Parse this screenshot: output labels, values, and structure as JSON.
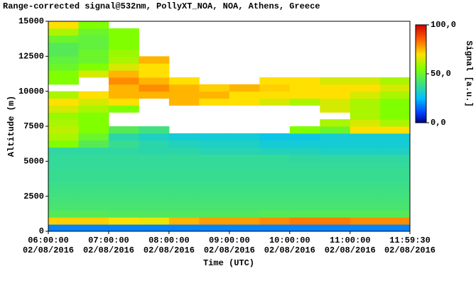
{
  "chart_data": {
    "type": "heatmap",
    "title": "Range-corrected signal@532nm, PollyXT_NOA, NOA, Athens, Greece",
    "x_label": "Time (UTC)",
    "y_label": "Altitude (m)",
    "colorbar_label": "Signal [a.u.]",
    "x_edges": [
      6,
      6.5,
      7,
      7.5,
      8,
      8.5,
      9,
      9.5,
      10,
      10.5,
      11,
      11.5,
      11.9917
    ],
    "y_edges": [
      0,
      500,
      1000,
      1500,
      2000,
      2500,
      3000,
      3500,
      4000,
      4500,
      5000,
      5500,
      6000,
      6500,
      7000,
      7500,
      8000,
      8500,
      9000,
      9500,
      10000,
      10500,
      11000,
      11500,
      12000,
      12500,
      13000,
      13500,
      14000,
      14500,
      15000
    ],
    "z": [
      [
        18,
        18,
        18,
        18,
        18,
        18,
        18,
        18,
        18,
        18,
        18,
        18
      ],
      [
        72,
        72,
        70,
        68,
        75,
        78,
        78,
        80,
        82,
        82,
        80,
        80
      ],
      [
        45,
        45,
        44,
        44,
        44,
        44,
        44,
        45,
        45,
        45,
        45,
        45
      ],
      [
        42,
        42,
        42,
        42,
        42,
        42,
        42,
        42,
        42,
        42,
        42,
        42
      ],
      [
        41,
        41,
        41,
        41,
        41,
        41,
        41,
        41,
        41,
        41,
        41,
        41
      ],
      [
        40,
        40,
        40,
        40,
        40,
        40,
        40,
        40,
        40,
        40,
        40,
        40
      ],
      [
        39,
        39,
        39,
        39,
        39,
        39,
        39,
        39,
        39,
        39,
        39,
        39
      ],
      [
        38,
        38,
        38,
        38,
        38,
        38,
        38,
        38,
        38,
        38,
        38,
        38
      ],
      [
        38,
        38,
        38,
        38,
        38,
        38,
        38,
        38,
        38,
        38,
        38,
        38
      ],
      [
        37,
        37,
        37,
        37,
        37,
        37,
        37,
        37,
        37,
        37,
        37,
        37
      ],
      [
        37,
        37,
        37,
        37,
        37,
        37,
        37,
        37,
        36,
        36,
        36,
        36
      ],
      [
        36,
        36,
        36,
        35,
        35,
        34,
        34,
        33,
        33,
        32,
        32,
        32
      ],
      [
        55,
        45,
        38,
        35,
        33,
        32,
        32,
        30,
        30,
        30,
        30,
        30
      ],
      [
        60,
        50,
        35,
        32,
        30,
        30,
        30,
        28,
        28,
        30,
        30,
        30
      ],
      [
        62,
        55,
        45,
        40,
        null,
        null,
        null,
        null,
        55,
        50,
        70,
        70
      ],
      [
        60,
        55,
        null,
        null,
        null,
        null,
        null,
        null,
        null,
        60,
        65,
        60
      ],
      [
        58,
        55,
        null,
        null,
        null,
        null,
        null,
        null,
        null,
        null,
        60,
        55
      ],
      [
        65,
        60,
        55,
        null,
        null,
        null,
        null,
        null,
        null,
        65,
        60,
        55
      ],
      [
        70,
        65,
        70,
        null,
        75,
        70,
        70,
        65,
        60,
        65,
        60,
        55
      ],
      [
        60,
        70,
        75,
        75,
        75,
        75,
        70,
        70,
        70,
        70,
        65,
        60
      ],
      [
        null,
        null,
        75,
        80,
        75,
        72,
        75,
        72,
        70,
        70,
        70,
        65
      ],
      [
        55,
        null,
        80,
        75,
        70,
        null,
        null,
        70,
        70,
        65,
        65,
        60
      ],
      [
        55,
        65,
        75,
        70,
        null,
        null,
        null,
        null,
        null,
        null,
        null,
        null
      ],
      [
        50,
        55,
        65,
        70,
        null,
        null,
        null,
        null,
        null,
        null,
        null,
        null
      ],
      [
        48,
        50,
        60,
        75,
        null,
        null,
        null,
        null,
        null,
        null,
        null,
        null
      ],
      [
        45,
        50,
        58,
        null,
        null,
        null,
        null,
        null,
        null,
        null,
        null,
        null
      ],
      [
        45,
        48,
        55,
        null,
        null,
        null,
        null,
        null,
        null,
        null,
        null,
        null
      ],
      [
        50,
        48,
        55,
        null,
        null,
        null,
        null,
        null,
        null,
        null,
        null,
        null
      ],
      [
        60,
        50,
        55,
        null,
        null,
        null,
        null,
        null,
        null,
        null,
        null,
        null
      ],
      [
        70,
        55,
        null,
        null,
        null,
        null,
        null,
        null,
        null,
        null,
        null,
        null
      ]
    ],
    "xlim": [
      6,
      11.9917
    ],
    "xticks": [
      {
        "value": 6,
        "label": [
          "06:00:00",
          "02/08/2016"
        ]
      },
      {
        "value": 7,
        "label": [
          "07:00:00",
          "02/08/2016"
        ]
      },
      {
        "value": 8,
        "label": [
          "08:00:00",
          "02/08/2016"
        ]
      },
      {
        "value": 9,
        "label": [
          "09:00:00",
          "02/08/2016"
        ]
      },
      {
        "value": 10,
        "label": [
          "10:00:00",
          "02/08/2016"
        ]
      },
      {
        "value": 11,
        "label": [
          "11:00:00",
          "02/08/2016"
        ]
      },
      {
        "value": 11.9917,
        "label": [
          "11:59:30",
          "02/08/2016"
        ]
      }
    ],
    "ylim": [
      0,
      15000
    ],
    "yticks": [
      0,
      2500,
      5000,
      7500,
      10000,
      12500,
      15000
    ],
    "clim": [
      0,
      100
    ],
    "cticks": [
      {
        "value": 0,
        "label": "0,0"
      },
      {
        "value": 50,
        "label": "50,0"
      },
      {
        "value": 100,
        "label": "100,0"
      }
    ],
    "colorscale": [
      [
        0,
        "#000080"
      ],
      [
        10,
        "#0040ff"
      ],
      [
        25,
        "#00c0ff"
      ],
      [
        40,
        "#40e080"
      ],
      [
        55,
        "#80ff00"
      ],
      [
        70,
        "#ffe000"
      ],
      [
        85,
        "#ff6000"
      ],
      [
        100,
        "#d00000"
      ]
    ]
  }
}
